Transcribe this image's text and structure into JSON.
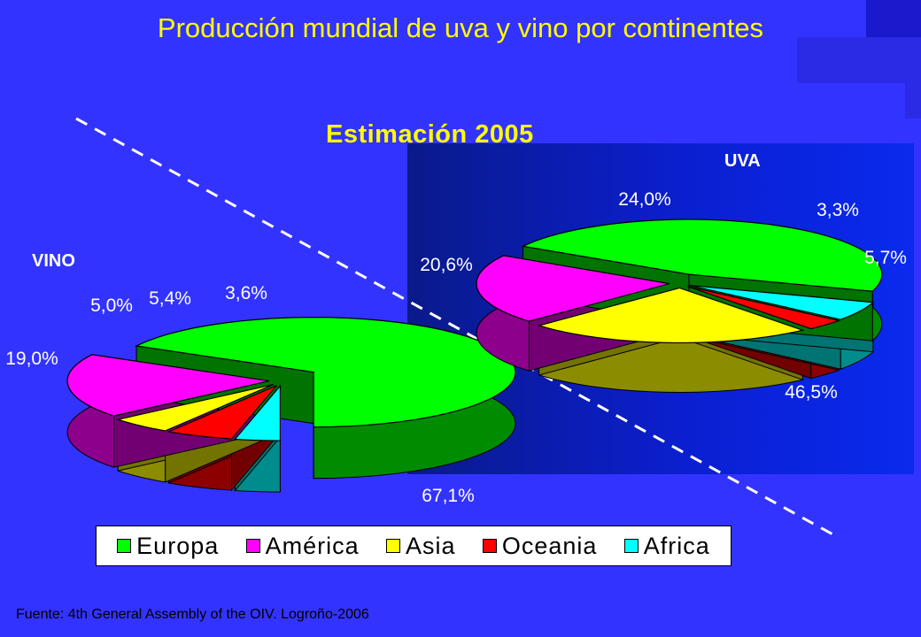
{
  "title": "Producción mundial de uva y vino por continentes",
  "subtitle": "Estimación 2005",
  "source": "Fuente: 4th General Assembly of the OIV. Logroño-2006",
  "colors": {
    "background": "#3333ff",
    "title": "#ffff00",
    "Europa": "#00ff00",
    "América": "#ff00ff",
    "Asia": "#ffff00",
    "Oceania": "#ff0000",
    "Africa": "#00ffff"
  },
  "legend": [
    "Europa",
    "América",
    "Asia",
    "Oceania",
    "Africa"
  ],
  "chart_data": [
    {
      "type": "pie",
      "title": "VINO",
      "categories": [
        "Europa",
        "América",
        "Asia",
        "Oceania",
        "Africa"
      ],
      "values": [
        67.1,
        19.0,
        5.0,
        5.4,
        3.6
      ],
      "labels": [
        "67,1%",
        "19,0%",
        "5,0%",
        "5,4%",
        "3,6%"
      ]
    },
    {
      "type": "pie",
      "title": "UVA",
      "categories": [
        "Europa",
        "América",
        "Asia",
        "Oceania",
        "Africa"
      ],
      "values": [
        46.5,
        20.6,
        24.0,
        3.3,
        5.7
      ],
      "labels": [
        "46,5%",
        "20,6%",
        "24,0%",
        "3,3%",
        "5,7%"
      ]
    }
  ]
}
